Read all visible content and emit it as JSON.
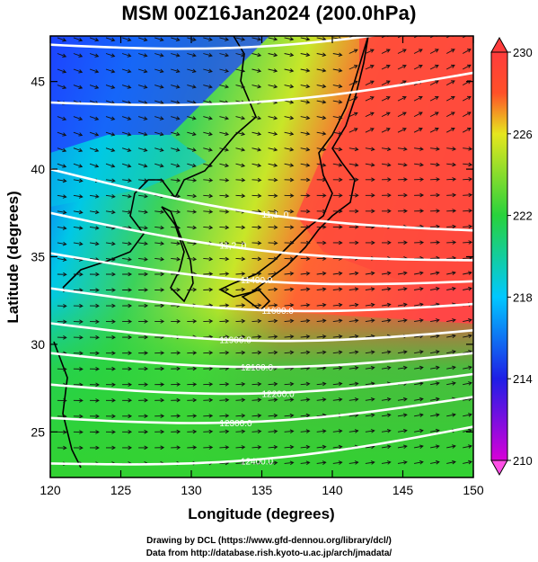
{
  "title": "MSM 00Z16Jan2024 (200.0hPa)",
  "xlabel": "Longitude (degrees)",
  "ylabel": "Latitude  (degrees)",
  "credits": {
    "line1": "Drawing by DCL (https://www.gfd-dennou.org/library/dcl/)",
    "line2": "Data from http://database.rish.kyoto-u.ac.jp/arch/jmadata/"
  },
  "chart_data": {
    "type": "heatmap",
    "variable": "temperature (K) with geopotential height contours and wind vectors",
    "xlim": [
      120,
      150
    ],
    "ylim": [
      22.4,
      47.6
    ],
    "x_ticks": [
      "120",
      "125",
      "130",
      "135",
      "140",
      "145",
      "150"
    ],
    "y_ticks": [
      "25",
      "30",
      "35",
      "40",
      "45"
    ],
    "colorbar": {
      "min": 210,
      "max": 230,
      "ticks": [
        "210",
        "214",
        "218",
        "222",
        "226",
        "230"
      ],
      "colors": [
        "#d800d8",
        "#1e1ee6",
        "#00c8ff",
        "#28d23c",
        "#e6e61e",
        "#ff5028",
        "#ff3c3c"
      ]
    },
    "height_contours": [
      {
        "label": "",
        "lat_at_120": 47.1,
        "lat_at_150": 48.5
      },
      {
        "label": "",
        "lat_at_120": 43.8,
        "lat_at_150": 45.5
      },
      {
        "label": "11,1..0",
        "lat_at_120": 40.0,
        "lat_at_150": 36.5
      },
      {
        "label": "11,?..0",
        "lat_at_120": 37.5,
        "lat_at_150": 34.8
      },
      {
        "label": "11400.0",
        "lat_at_120": 35.2,
        "lat_at_150": 33.6
      },
      {
        "label": "11600.0",
        "lat_at_120": 33.2,
        "lat_at_150": 32.3
      },
      {
        "label": "11900.0",
        "lat_at_120": 31.2,
        "lat_at_150": 30.8
      },
      {
        "label": "12100.0",
        "lat_at_120": 29.5,
        "lat_at_150": 29.5
      },
      {
        "label": "12200.0",
        "lat_at_120": 27.7,
        "lat_at_150": 28.3
      },
      {
        "label": "12300.0",
        "lat_at_120": 25.8,
        "lat_at_150": 27.0
      },
      {
        "label": "12400.0",
        "lat_at_120": 23.2,
        "lat_at_150": 25.3
      }
    ]
  }
}
